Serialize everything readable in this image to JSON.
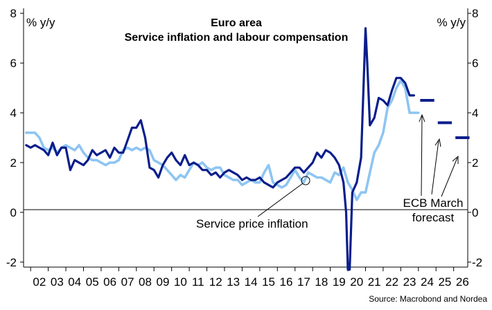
{
  "chart_data": {
    "type": "line",
    "title": "Euro area",
    "subtitle": "Service inflation and labour compensation",
    "ylabel_left": "% y/y",
    "ylabel_right": "% y/y",
    "xlabel": "",
    "ylim": [
      -2.2,
      8.2
    ],
    "y_ticks": [
      -2,
      0,
      2,
      4,
      6,
      8
    ],
    "x_tick_labels": [
      "02",
      "03",
      "04",
      "05",
      "06",
      "07",
      "08",
      "09",
      "10",
      "11",
      "12",
      "13",
      "14",
      "15",
      "16",
      "17",
      "18",
      "19",
      "20",
      "21",
      "22",
      "23",
      "24",
      "25",
      "26"
    ],
    "x_range": [
      2001.6,
      2026.8
    ],
    "grid": false,
    "zero_line": true,
    "source": "Source: Macrobond and Nordea",
    "colors": {
      "labour": "#0a1e8c",
      "service": "#8ec5f2",
      "axis": "#000000"
    },
    "series": [
      {
        "name": "",
        "color": "#0a1e8c",
        "x": [
          2001.75,
          2002.0,
          2002.25,
          2002.5,
          2002.75,
          2003.0,
          2003.25,
          2003.5,
          2003.75,
          2004.0,
          2004.25,
          2004.5,
          2004.75,
          2005.0,
          2005.25,
          2005.5,
          2005.75,
          2006.0,
          2006.25,
          2006.5,
          2006.75,
          2007.0,
          2007.25,
          2007.5,
          2007.75,
          2008.0,
          2008.25,
          2008.5,
          2008.75,
          2009.0,
          2009.25,
          2009.5,
          2009.75,
          2010.0,
          2010.25,
          2010.5,
          2010.75,
          2011.0,
          2011.25,
          2011.5,
          2011.75,
          2012.0,
          2012.25,
          2012.5,
          2012.75,
          2013.0,
          2013.25,
          2013.5,
          2013.75,
          2014.0,
          2014.25,
          2014.5,
          2014.75,
          2015.0,
          2015.25,
          2015.5,
          2015.75,
          2016.0,
          2016.25,
          2016.5,
          2016.75,
          2017.0,
          2017.25,
          2017.5,
          2017.75,
          2018.0,
          2018.25,
          2018.5,
          2018.75,
          2019.0,
          2019.25,
          2019.5,
          2019.75,
          2019.9,
          2020.0,
          2020.1,
          2020.25,
          2020.5,
          2020.75,
          2021.0,
          2021.1,
          2021.25,
          2021.5,
          2021.75,
          2022.0,
          2022.25,
          2022.5,
          2022.75,
          2023.0,
          2023.25,
          2023.5,
          2023.75
        ],
        "values": [
          2.7,
          2.6,
          2.7,
          2.6,
          2.5,
          2.3,
          2.8,
          2.3,
          2.6,
          2.6,
          1.7,
          2.1,
          2.0,
          1.9,
          2.1,
          2.5,
          2.3,
          2.4,
          2.5,
          2.2,
          2.6,
          2.4,
          2.4,
          2.9,
          3.4,
          3.4,
          3.7,
          3.0,
          1.8,
          1.7,
          1.4,
          1.9,
          2.2,
          2.4,
          2.1,
          1.9,
          2.3,
          1.9,
          2.0,
          1.9,
          1.7,
          1.7,
          1.5,
          1.6,
          1.4,
          1.6,
          1.7,
          1.6,
          1.5,
          1.3,
          1.4,
          1.3,
          1.3,
          1.4,
          1.2,
          1.1,
          1.0,
          1.2,
          1.3,
          1.4,
          1.6,
          1.8,
          1.8,
          1.6,
          1.8,
          2.0,
          2.4,
          2.2,
          2.5,
          2.4,
          2.2,
          1.9,
          1.2,
          0.0,
          -2.3,
          -2.3,
          0.8,
          1.2,
          2.2,
          7.4,
          6.0,
          3.5,
          3.8,
          4.6,
          4.5,
          4.3,
          4.9,
          5.4,
          5.4,
          5.2,
          4.7,
          4.7
        ]
      },
      {
        "name": "Service price inflation",
        "color": "#8ec5f2",
        "x": [
          2001.75,
          2002.0,
          2002.25,
          2002.5,
          2002.75,
          2003.0,
          2003.25,
          2003.5,
          2003.75,
          2004.0,
          2004.25,
          2004.5,
          2004.75,
          2005.0,
          2005.25,
          2005.5,
          2005.75,
          2006.0,
          2006.25,
          2006.5,
          2006.75,
          2007.0,
          2007.25,
          2007.5,
          2007.75,
          2008.0,
          2008.25,
          2008.5,
          2008.75,
          2009.0,
          2009.25,
          2009.5,
          2009.75,
          2010.0,
          2010.25,
          2010.5,
          2010.75,
          2011.0,
          2011.25,
          2011.5,
          2011.75,
          2012.0,
          2012.25,
          2012.5,
          2012.75,
          2013.0,
          2013.25,
          2013.5,
          2013.75,
          2014.0,
          2014.25,
          2014.5,
          2014.75,
          2015.0,
          2015.25,
          2015.5,
          2015.75,
          2016.0,
          2016.25,
          2016.5,
          2016.75,
          2017.0,
          2017.25,
          2017.5,
          2017.75,
          2018.0,
          2018.25,
          2018.5,
          2018.75,
          2019.0,
          2019.25,
          2019.5,
          2019.75,
          2020.0,
          2020.25,
          2020.5,
          2020.75,
          2021.0,
          2021.25,
          2021.5,
          2021.75,
          2022.0,
          2022.25,
          2022.5,
          2022.75,
          2023.0,
          2023.25,
          2023.5,
          2023.75,
          2024.0
        ],
        "values": [
          3.2,
          3.2,
          3.2,
          3.0,
          2.6,
          2.5,
          2.6,
          2.4,
          2.6,
          2.7,
          2.6,
          2.5,
          2.7,
          2.4,
          2.2,
          2.1,
          2.1,
          2.0,
          1.9,
          2.0,
          2.0,
          2.1,
          2.5,
          2.6,
          2.5,
          2.6,
          2.5,
          2.6,
          2.5,
          2.1,
          2.0,
          1.9,
          1.7,
          1.5,
          1.3,
          1.5,
          1.4,
          1.7,
          2.0,
          1.9,
          2.0,
          1.8,
          1.7,
          1.8,
          1.8,
          1.5,
          1.4,
          1.3,
          1.3,
          1.1,
          1.2,
          1.3,
          1.2,
          1.2,
          1.6,
          1.9,
          1.2,
          1.1,
          1.0,
          1.1,
          1.4,
          1.7,
          1.4,
          1.2,
          1.6,
          1.5,
          1.4,
          1.4,
          1.3,
          1.2,
          1.6,
          1.5,
          1.8,
          1.2,
          0.9,
          0.5,
          0.8,
          0.8,
          1.6,
          2.4,
          2.7,
          3.2,
          4.2,
          4.5,
          5.0,
          5.3,
          5.0,
          4.0,
          4.0,
          4.0
        ]
      }
    ],
    "forecast_segments": [
      {
        "year": 2024,
        "value": 4.5
      },
      {
        "year": 2025,
        "value": 3.6
      },
      {
        "year": 2026,
        "value": 3.0
      }
    ],
    "annotations": [
      {
        "text": "Service price inflation"
      },
      {
        "text_line1": "ECB March",
        "text_line2": "forecast"
      }
    ]
  }
}
